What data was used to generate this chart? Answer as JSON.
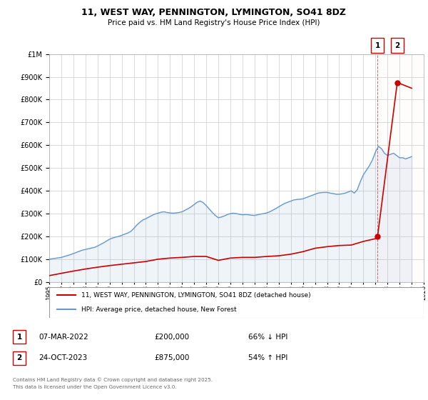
{
  "title": "11, WEST WAY, PENNINGTON, LYMINGTON, SO41 8DZ",
  "subtitle": "Price paid vs. HM Land Registry's House Price Index (HPI)",
  "ylim": [
    0,
    1000000
  ],
  "xlim": [
    1995,
    2026
  ],
  "background_color": "#ffffff",
  "grid_color": "#cccccc",
  "hpi_color": "#6699cc",
  "price_color": "#cc0000",
  "sale1_x": 2022.18,
  "sale2_x": 2023.81,
  "sale1_y": 200000,
  "sale2_y": 875000,
  "sale1_date": "07-MAR-2022",
  "sale1_price_str": "£200,000",
  "sale1_hpi_str": "66% ↓ HPI",
  "sale2_date": "24-OCT-2023",
  "sale2_price_str": "£875,000",
  "sale2_hpi_str": "54% ↑ HPI",
  "legend_label_price": "11, WEST WAY, PENNINGTON, LYMINGTON, SO41 8DZ (detached house)",
  "legend_label_hpi": "HPI: Average price, detached house, New Forest",
  "footnote_line1": "Contains HM Land Registry data © Crown copyright and database right 2025.",
  "footnote_line2": "This data is licensed under the Open Government Licence v3.0.",
  "hpi_data_x": [
    1995.0,
    1995.25,
    1995.5,
    1995.75,
    1996.0,
    1996.25,
    1996.5,
    1996.75,
    1997.0,
    1997.25,
    1997.5,
    1997.75,
    1998.0,
    1998.25,
    1998.5,
    1998.75,
    1999.0,
    1999.25,
    1999.5,
    1999.75,
    2000.0,
    2000.25,
    2000.5,
    2000.75,
    2001.0,
    2001.25,
    2001.5,
    2001.75,
    2002.0,
    2002.25,
    2002.5,
    2002.75,
    2003.0,
    2003.25,
    2003.5,
    2003.75,
    2004.0,
    2004.25,
    2004.5,
    2004.75,
    2005.0,
    2005.25,
    2005.5,
    2005.75,
    2006.0,
    2006.25,
    2006.5,
    2006.75,
    2007.0,
    2007.25,
    2007.5,
    2007.75,
    2008.0,
    2008.25,
    2008.5,
    2008.75,
    2009.0,
    2009.25,
    2009.5,
    2009.75,
    2010.0,
    2010.25,
    2010.5,
    2010.75,
    2011.0,
    2011.25,
    2011.5,
    2011.75,
    2012.0,
    2012.25,
    2012.5,
    2012.75,
    2013.0,
    2013.25,
    2013.5,
    2013.75,
    2014.0,
    2014.25,
    2014.5,
    2014.75,
    2015.0,
    2015.25,
    2015.5,
    2015.75,
    2016.0,
    2016.25,
    2016.5,
    2016.75,
    2017.0,
    2017.25,
    2017.5,
    2017.75,
    2018.0,
    2018.25,
    2018.5,
    2018.75,
    2019.0,
    2019.25,
    2019.5,
    2019.75,
    2020.0,
    2020.25,
    2020.5,
    2020.75,
    2021.0,
    2021.25,
    2021.5,
    2021.75,
    2022.0,
    2022.25,
    2022.5,
    2022.75,
    2023.0,
    2023.25,
    2023.5,
    2023.75,
    2024.0,
    2024.25,
    2024.5,
    2024.75,
    2025.0
  ],
  "hpi_data_y": [
    100000,
    102000,
    104000,
    106000,
    108000,
    112000,
    116000,
    120000,
    125000,
    130000,
    135000,
    140000,
    143000,
    146000,
    149000,
    152000,
    158000,
    165000,
    172000,
    180000,
    188000,
    193000,
    197000,
    200000,
    205000,
    210000,
    215000,
    222000,
    235000,
    250000,
    262000,
    272000,
    278000,
    285000,
    292000,
    298000,
    302000,
    306000,
    308000,
    305000,
    303000,
    302000,
    303000,
    305000,
    308000,
    315000,
    322000,
    330000,
    340000,
    350000,
    355000,
    348000,
    335000,
    320000,
    305000,
    292000,
    282000,
    285000,
    290000,
    296000,
    300000,
    302000,
    300000,
    297000,
    295000,
    296000,
    295000,
    293000,
    292000,
    295000,
    298000,
    300000,
    303000,
    308000,
    315000,
    322000,
    330000,
    338000,
    345000,
    350000,
    355000,
    360000,
    362000,
    363000,
    365000,
    370000,
    375000,
    380000,
    385000,
    390000,
    392000,
    393000,
    393000,
    390000,
    388000,
    385000,
    385000,
    387000,
    390000,
    395000,
    400000,
    390000,
    405000,
    440000,
    470000,
    490000,
    510000,
    535000,
    570000,
    595000,
    585000,
    565000,
    555000,
    560000,
    565000,
    555000,
    545000,
    545000,
    540000,
    545000,
    550000
  ],
  "price_data_x": [
    1995.0,
    1996.0,
    1997.0,
    1998.0,
    1999.0,
    2000.0,
    2001.0,
    2002.0,
    2003.0,
    2004.0,
    2005.0,
    2006.0,
    2007.0,
    2008.0,
    2009.0,
    2010.0,
    2011.0,
    2012.0,
    2013.0,
    2014.0,
    2015.0,
    2016.0,
    2017.0,
    2018.0,
    2019.0,
    2020.0,
    2021.0,
    2022.0,
    2022.18,
    2023.81,
    2025.0
  ],
  "price_data_y": [
    28000,
    38000,
    48000,
    57000,
    65000,
    72000,
    78000,
    84000,
    90000,
    100000,
    105000,
    108000,
    112000,
    112000,
    95000,
    105000,
    108000,
    108000,
    112000,
    115000,
    122000,
    133000,
    148000,
    155000,
    160000,
    162000,
    178000,
    190000,
    200000,
    875000,
    850000
  ]
}
